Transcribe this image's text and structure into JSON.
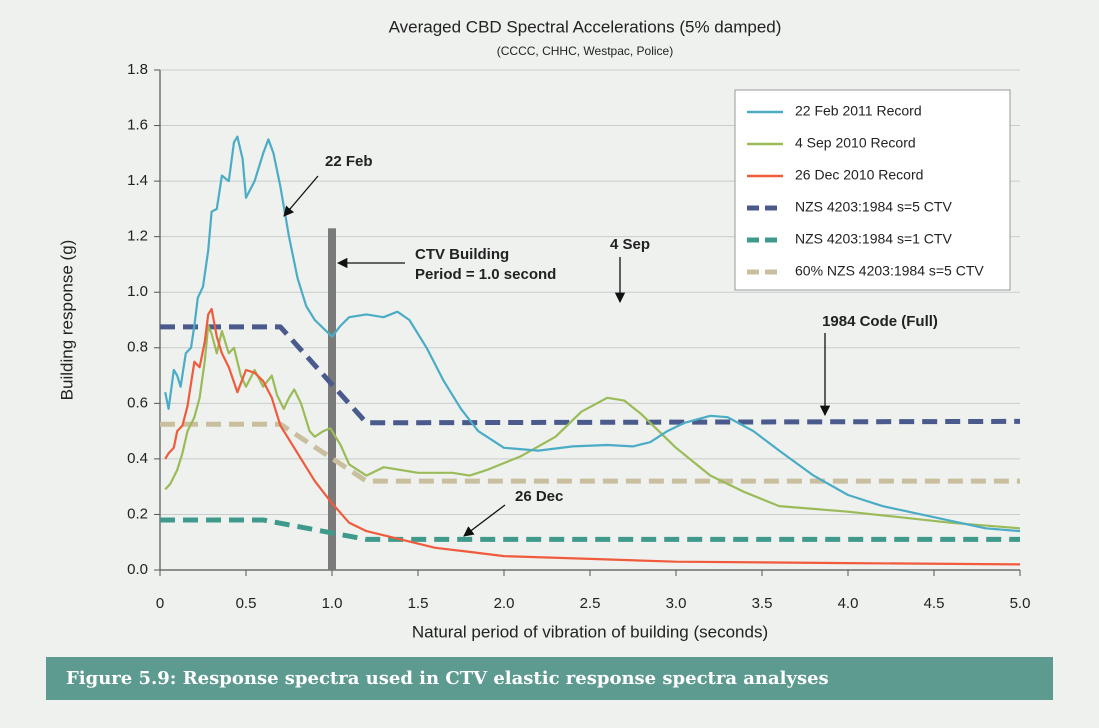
{
  "chart_data": {
    "type": "line",
    "title": "Averaged CBD Spectral Accelerations (5% damped)",
    "subtitle": "(CCCC, CHHC, Westpac, Police)",
    "xlabel": "Natural period of vibration of building (seconds)",
    "ylabel": "Building response (g)",
    "caption": "Figure 5.9: Response spectra used in CTV elastic response spectra analyses",
    "xlim": [
      0,
      5
    ],
    "ylim": [
      0,
      1.8
    ],
    "xticks": [
      0,
      0.5,
      {
        "value": 1,
        "label": "1.0"
      },
      1.5,
      {
        "value": 2,
        "label": "2.0"
      },
      2.5,
      {
        "value": 3,
        "label": "3.0"
      },
      3.5,
      {
        "value": 4,
        "label": "4.0"
      },
      4.5,
      {
        "value": 5,
        "label": "5.0"
      }
    ],
    "yticks": [
      {
        "value": 0,
        "label": "0.0"
      },
      0.2,
      0.4,
      0.6,
      0.8,
      {
        "value": 1,
        "label": "1.0"
      },
      1.2,
      1.4,
      1.6,
      1.8
    ],
    "grid": true,
    "legend": "upper right",
    "vline": {
      "x": 1,
      "ymax": 1.23,
      "color": "#7a7a7a"
    },
    "series": [
      {
        "name": "22 Feb 2011 Record",
        "color": "#4bacc6",
        "dash": false,
        "x": [
          0.03,
          0.05,
          0.08,
          0.1,
          0.12,
          0.15,
          0.18,
          0.2,
          0.22,
          0.25,
          0.28,
          0.3,
          0.33,
          0.36,
          0.4,
          0.43,
          0.45,
          0.48,
          0.5,
          0.55,
          0.6,
          0.63,
          0.66,
          0.7,
          0.75,
          0.8,
          0.85,
          0.9,
          0.95,
          1.0,
          1.05,
          1.1,
          1.2,
          1.3,
          1.38,
          1.45,
          1.55,
          1.65,
          1.75,
          1.85,
          2.0,
          2.2,
          2.4,
          2.6,
          2.75,
          2.85,
          2.95,
          3.05,
          3.2,
          3.3,
          3.45,
          3.6,
          3.8,
          4.0,
          4.2,
          4.5,
          4.8,
          5.0
        ],
        "values": [
          0.64,
          0.58,
          0.72,
          0.7,
          0.66,
          0.78,
          0.8,
          0.88,
          0.98,
          1.02,
          1.15,
          1.29,
          1.3,
          1.42,
          1.4,
          1.54,
          1.56,
          1.48,
          1.34,
          1.4,
          1.5,
          1.55,
          1.5,
          1.38,
          1.2,
          1.05,
          0.95,
          0.9,
          0.87,
          0.84,
          0.88,
          0.91,
          0.92,
          0.91,
          0.93,
          0.9,
          0.8,
          0.68,
          0.58,
          0.5,
          0.44,
          0.43,
          0.445,
          0.45,
          0.445,
          0.46,
          0.5,
          0.53,
          0.555,
          0.55,
          0.5,
          0.43,
          0.34,
          0.27,
          0.23,
          0.19,
          0.15,
          0.14
        ]
      },
      {
        "name": "4 Sep 2010 Record",
        "color": "#9bbb59",
        "dash": false,
        "x": [
          0.03,
          0.06,
          0.1,
          0.13,
          0.16,
          0.2,
          0.23,
          0.26,
          0.28,
          0.3,
          0.33,
          0.36,
          0.4,
          0.43,
          0.47,
          0.5,
          0.55,
          0.6,
          0.65,
          0.68,
          0.72,
          0.75,
          0.78,
          0.82,
          0.87,
          0.9,
          0.95,
          0.99,
          1.05,
          1.1,
          1.2,
          1.3,
          1.5,
          1.7,
          1.8,
          1.9,
          2.1,
          2.3,
          2.45,
          2.6,
          2.7,
          2.8,
          3.0,
          3.2,
          3.4,
          3.6,
          3.8,
          4.0,
          4.3,
          4.6,
          5.0
        ],
        "values": [
          0.29,
          0.31,
          0.36,
          0.42,
          0.5,
          0.55,
          0.62,
          0.75,
          0.88,
          0.85,
          0.78,
          0.86,
          0.78,
          0.8,
          0.7,
          0.66,
          0.72,
          0.66,
          0.7,
          0.63,
          0.58,
          0.62,
          0.65,
          0.6,
          0.5,
          0.48,
          0.5,
          0.51,
          0.45,
          0.38,
          0.34,
          0.37,
          0.35,
          0.35,
          0.34,
          0.36,
          0.41,
          0.48,
          0.57,
          0.62,
          0.61,
          0.56,
          0.44,
          0.34,
          0.28,
          0.23,
          0.22,
          0.21,
          0.19,
          0.17,
          0.15
        ]
      },
      {
        "name": "26 Dec 2010 Record",
        "color": "#ef5b3c",
        "dash": false,
        "x": [
          0.03,
          0.05,
          0.08,
          0.1,
          0.13,
          0.16,
          0.2,
          0.23,
          0.26,
          0.28,
          0.3,
          0.33,
          0.36,
          0.4,
          0.45,
          0.5,
          0.55,
          0.6,
          0.65,
          0.7,
          0.8,
          0.9,
          1.0,
          1.1,
          1.2,
          1.4,
          1.6,
          1.8,
          2.0,
          2.5,
          3.0,
          4.0,
          5.0
        ],
        "values": [
          0.4,
          0.42,
          0.44,
          0.5,
          0.52,
          0.59,
          0.75,
          0.73,
          0.82,
          0.92,
          0.94,
          0.84,
          0.78,
          0.73,
          0.64,
          0.72,
          0.71,
          0.68,
          0.62,
          0.52,
          0.42,
          0.32,
          0.24,
          0.17,
          0.14,
          0.11,
          0.08,
          0.065,
          0.05,
          0.04,
          0.03,
          0.025,
          0.02
        ]
      },
      {
        "name": "NZS 4203:1984 s=5 CTV",
        "color": "#4a5a8c",
        "dash": true,
        "x": [
          0,
          0.7,
          1.2,
          5
        ],
        "values": [
          0.875,
          0.875,
          0.53,
          0.535
        ]
      },
      {
        "name": "NZS 4203:1984 s=1 CTV",
        "color": "#3f9a8c",
        "dash": true,
        "x": [
          0,
          0.6,
          1.2,
          5
        ],
        "values": [
          0.18,
          0.18,
          0.11,
          0.11
        ]
      },
      {
        "name": "60% NZS 4203:1984 s=5 CTV",
        "color": "#c9bf9f",
        "dash": true,
        "x": [
          0,
          0.7,
          1.2,
          5
        ],
        "values": [
          0.525,
          0.525,
          0.32,
          0.32
        ]
      }
    ],
    "annotations": [
      {
        "lines": [
          "22 Feb"
        ]
      },
      {
        "lines": [
          "CTV Building",
          "Period = 1.0 second"
        ]
      },
      {
        "lines": [
          "4 Sep"
        ]
      },
      {
        "lines": [
          "1984 Code (Full)"
        ]
      },
      {
        "lines": [
          "26 Dec"
        ]
      }
    ]
  }
}
